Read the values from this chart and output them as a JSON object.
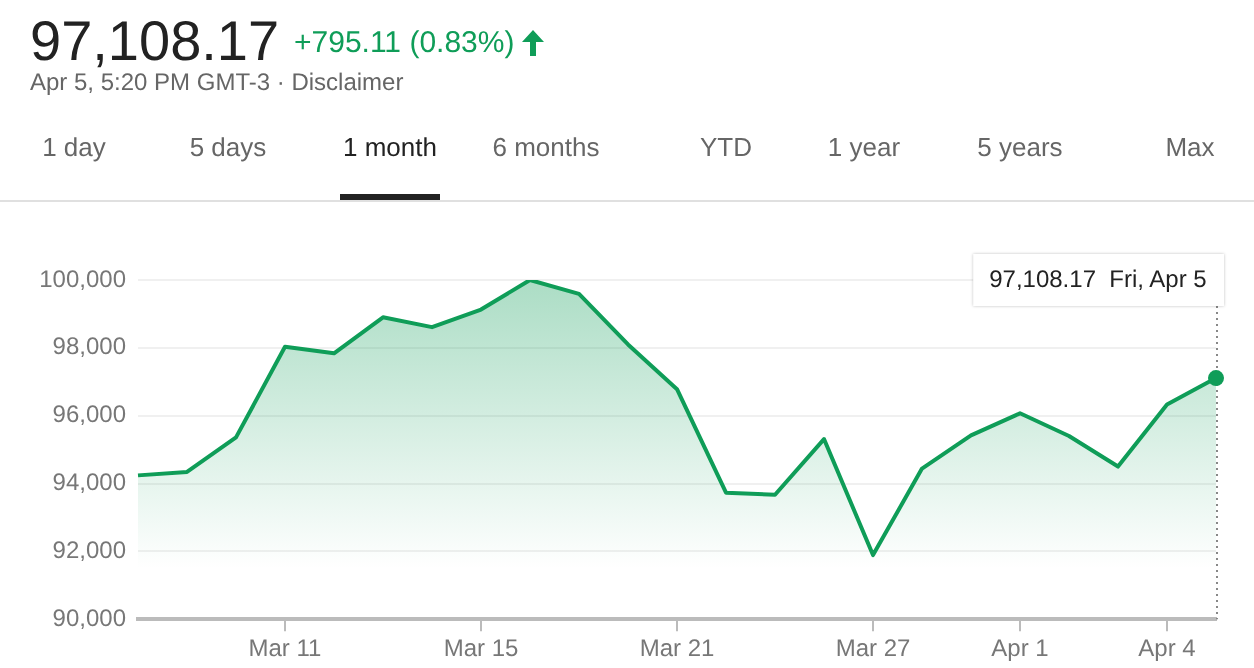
{
  "chart_data": {
    "type": "area",
    "title": "97,108.17",
    "subtitle": "+795.11 (0.83%)",
    "categories": [
      null,
      null,
      null,
      "Mar 11",
      null,
      null,
      null,
      "Mar 15",
      null,
      null,
      null,
      "Mar 21",
      null,
      null,
      null,
      "Mar 27",
      null,
      null,
      "Apr 1",
      null,
      null,
      "Apr 4",
      null
    ],
    "values": [
      94240,
      94340,
      95360,
      98030,
      97840,
      98900,
      98610,
      99130,
      100000,
      99590,
      98100,
      96780,
      93730,
      93670,
      95310,
      91890,
      94440,
      95420,
      96070,
      95400,
      94500,
      96330,
      97108.17
    ],
    "color": "#0f9d58",
    "ylim": [
      90000,
      100000
    ],
    "yticks": [
      {
        "value": 90000,
        "label": "90,000"
      },
      {
        "value": 92000,
        "label": "92,000"
      },
      {
        "value": 94000,
        "label": "94,000"
      },
      {
        "value": 96000,
        "label": "96,000"
      },
      {
        "value": 98000,
        "label": "98,000"
      },
      {
        "value": 100000,
        "label": "100,000"
      }
    ],
    "grid": "y",
    "legend": false,
    "marker": "none",
    "line_style": "solid",
    "annotations": [
      "Apr 5, 5:20 PM GMT-3 · Disclaimer",
      "1 day",
      "5 days",
      "1 month",
      "6 months",
      "YTD",
      "1 year",
      "5 years",
      "Max",
      "97,108.17  Fri, Apr 5"
    ]
  }
}
